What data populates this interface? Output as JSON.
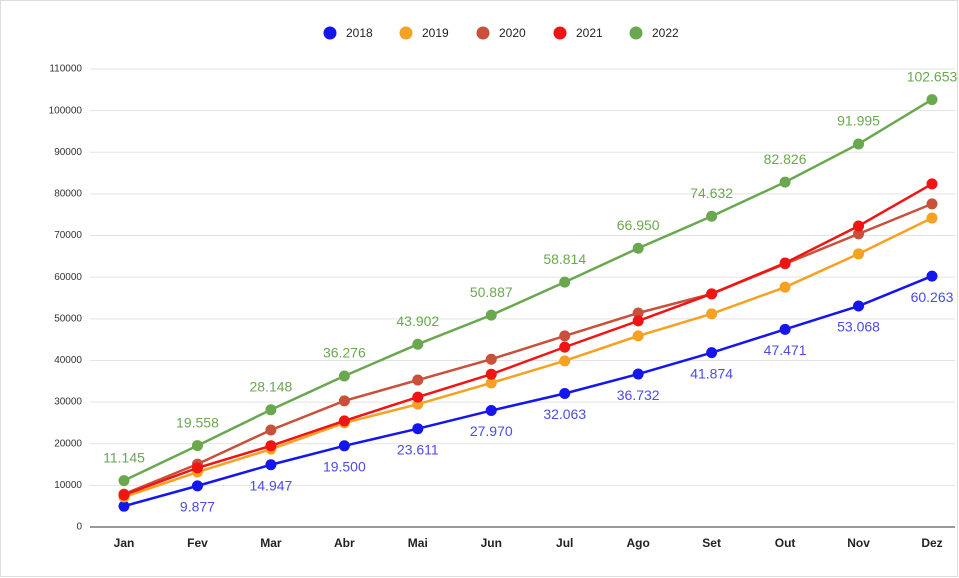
{
  "chart_data": {
    "type": "line",
    "categories": [
      "Jan",
      "Fev",
      "Mar",
      "Abr",
      "Mai",
      "Jun",
      "Jul",
      "Ago",
      "Set",
      "Out",
      "Nov",
      "Dez"
    ],
    "series": [
      {
        "name": "2018",
        "color": "#1515ee",
        "label_color": "#4b4be6",
        "values": [
          5000,
          9877,
          14947,
          19500,
          23611,
          27970,
          32063,
          36732,
          41874,
          47471,
          53068,
          60263
        ],
        "value_labels": [
          null,
          "9.877",
          "14.947",
          "19.500",
          "23.611",
          "27.970",
          "32.063",
          "36.732",
          "41.874",
          "47.471",
          "53.068",
          "60.263"
        ]
      },
      {
        "name": "2019",
        "color": "#f5a122",
        "values": [
          7200,
          13200,
          18700,
          25000,
          29500,
          34600,
          39900,
          45900,
          51200,
          57600,
          65600,
          74200
        ]
      },
      {
        "name": "2020",
        "color": "#c9503a",
        "values": [
          7900,
          15100,
          23300,
          30300,
          35300,
          40300,
          45900,
          51400,
          56000,
          63200,
          70400,
          77600
        ]
      },
      {
        "name": "2021",
        "color": "#f01414",
        "values": [
          7700,
          14200,
          19500,
          25500,
          31200,
          36700,
          43200,
          49500,
          56000,
          63400,
          72300,
          82400
        ]
      },
      {
        "name": "2022",
        "color": "#6aa84f",
        "label_color": "#6aa84f",
        "values": [
          11145,
          19558,
          28148,
          36276,
          43902,
          50887,
          58814,
          66950,
          74632,
          82826,
          91995,
          102653
        ],
        "value_labels": [
          "11.145",
          "19.558",
          "28.148",
          "36.276",
          "43.902",
          "50.887",
          "58.814",
          "66.950",
          "74.632",
          "82.826",
          "91.995",
          "102.653"
        ]
      }
    ],
    "ylim": [
      0,
      110000
    ],
    "yticks": [
      0,
      10000,
      20000,
      30000,
      40000,
      50000,
      60000,
      70000,
      80000,
      90000,
      100000,
      110000
    ],
    "grid": true,
    "legend": "top"
  }
}
